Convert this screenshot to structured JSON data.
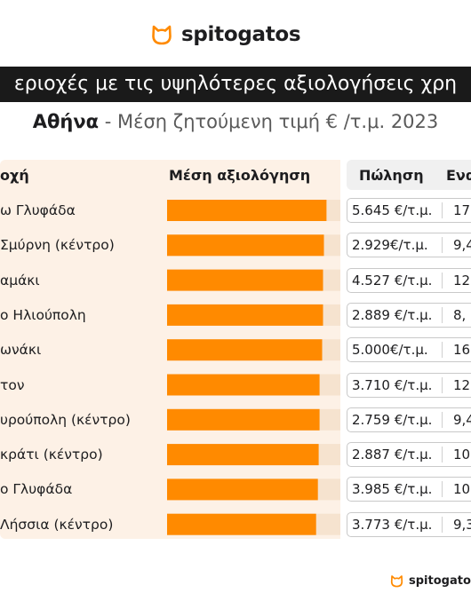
{
  "brand": {
    "name": "spitogatos"
  },
  "colors": {
    "accent": "#ff8a00",
    "panel": "#fdf1e6",
    "dark": "#1a1a1a"
  },
  "chart_data": {
    "type": "bar",
    "title": "εριοχές με τις υψηλότερες αξιολογήσεις χρη",
    "subtitle_city": "Αθήνα",
    "subtitle_rest": " - Μέση ζητούμενη τιμή € /τ.μ. 2023",
    "headers": {
      "area": "οχή",
      "rating": "Μέση αξιολόγηση",
      "sale": "Πώληση",
      "rent": "Ενα"
    },
    "categories": [
      "ω Γλυφάδα",
      "Σμύρνη (κέντρο)",
      "αμάκι",
      "ο Ηλιούπολη",
      "ωνάκι",
      "τον",
      "υρούπολη (κέντρο)",
      "κράτι (κέντρο)",
      "ο Γλυφάδα",
      "Λήσσια (κέντρο)"
    ],
    "values": [
      0.92,
      0.905,
      0.9,
      0.9,
      0.895,
      0.88,
      0.88,
      0.875,
      0.87,
      0.86
    ],
    "value_scale": "fraction of bar track",
    "sale_prices": [
      "5.645 €/τ.μ.",
      "2.929€/τ.μ.",
      "4.527 €/τ.μ.",
      "2.889 €/τ.μ.",
      "5.000€/τ.μ.",
      "3.710 €/τ.μ.",
      "2.759 €/τ.μ.",
      "2.887 €/τ.μ.",
      "3.985 €/τ.μ.",
      "3.773 €/τ.μ."
    ],
    "rent_prices": [
      "17,",
      "9,4",
      "12,",
      "8,",
      "16",
      "12,",
      "9,4",
      "10,",
      "10,",
      "9,3"
    ]
  }
}
